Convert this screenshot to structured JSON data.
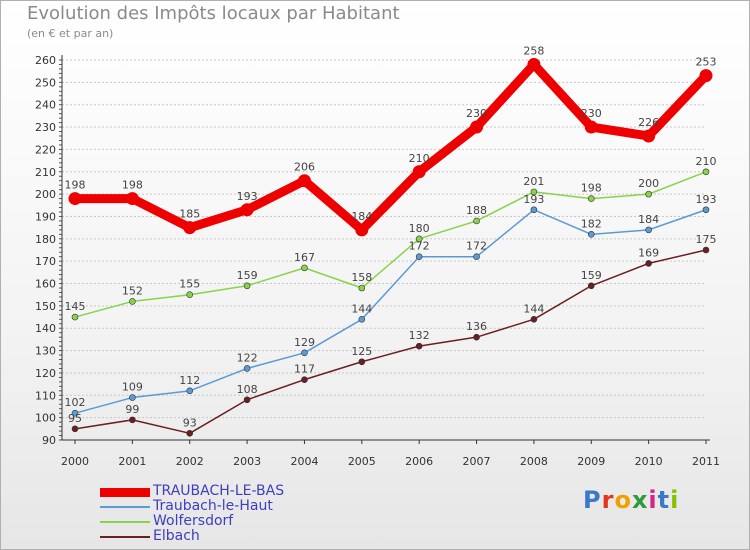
{
  "title": "Evolution des Impôts locaux par Habitant",
  "subtitle": "(en € et par an)",
  "logo": "Proxiti",
  "chart_data": {
    "type": "line",
    "title": "Evolution des Impôts locaux par Habitant",
    "subtitle": "(en € et par an)",
    "xlabel": "",
    "ylabel": "",
    "ylim": [
      90,
      260
    ],
    "y_ticks": [
      90,
      100,
      110,
      120,
      130,
      140,
      150,
      160,
      170,
      180,
      190,
      200,
      210,
      220,
      230,
      240,
      250,
      260
    ],
    "x": [
      "2000",
      "2001",
      "2002",
      "2003",
      "2004",
      "2005",
      "2006",
      "2007",
      "2008",
      "2009",
      "2010",
      "2011"
    ],
    "legend_position": "bottom-left",
    "series": [
      {
        "name": "TRAUBACH-LE-BAS",
        "color": "#ee0000",
        "values": [
          198,
          198,
          185,
          193,
          206,
          184,
          210,
          230,
          258,
          230,
          226,
          253
        ]
      },
      {
        "name": "Traubach-le-Haut",
        "color": "#5b9bd5",
        "values": [
          102,
          109,
          112,
          122,
          129,
          144,
          172,
          172,
          193,
          182,
          184,
          193
        ]
      },
      {
        "name": "Wolfersdorf",
        "color": "#88d34a",
        "values": [
          145,
          152,
          155,
          159,
          167,
          158,
          180,
          188,
          201,
          198,
          200,
          210
        ]
      },
      {
        "name": "Elbach",
        "color": "#6b1f22",
        "values": [
          95,
          99,
          93,
          108,
          117,
          125,
          132,
          136,
          144,
          159,
          169,
          175
        ]
      }
    ]
  }
}
